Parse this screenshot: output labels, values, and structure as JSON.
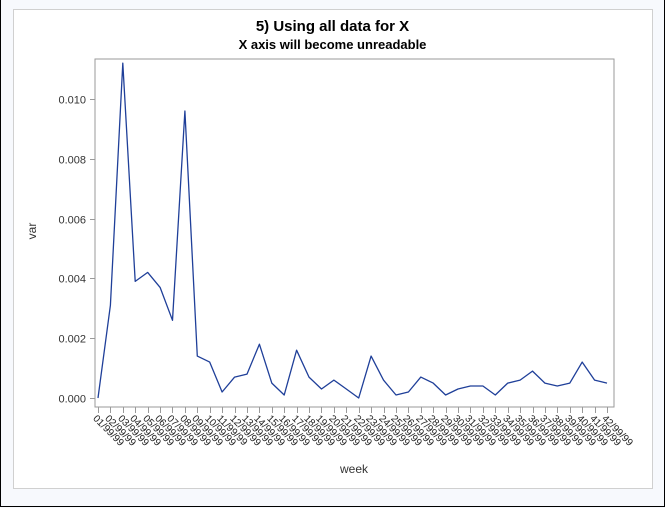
{
  "titles": {
    "main": "5) Using all data for X",
    "sub": "X axis will become unreadable"
  },
  "colors": {
    "line": "#1f3f99",
    "frame": "#9a9a9a",
    "background": "#f7f9fd"
  },
  "chart_data": {
    "type": "line",
    "title": "5) Using all data for X",
    "subtitle": "X axis will become unreadable",
    "xlabel": "week",
    "ylabel": "var",
    "ylim": [
      0,
      0.0113
    ],
    "yticks": [
      "0.000",
      "0.002",
      "0.004",
      "0.006",
      "0.008",
      "0.010"
    ],
    "ytick_values": [
      0,
      0.002,
      0.004,
      0.006,
      0.008,
      0.01
    ],
    "grid": false,
    "legend": null,
    "x_tick_labels_note": "42 rotated, overlapping week labels (unreadable)",
    "x": [
      1,
      2,
      3,
      4,
      5,
      6,
      7,
      8,
      9,
      10,
      11,
      12,
      13,
      14,
      15,
      16,
      17,
      18,
      19,
      20,
      21,
      22,
      23,
      24,
      25,
      26,
      27,
      28,
      29,
      30,
      31,
      32,
      33,
      34,
      35,
      36,
      37,
      38,
      39,
      40,
      41,
      42
    ],
    "series": [
      {
        "name": "var",
        "values": [
          0.0,
          0.0031,
          0.0112,
          0.0039,
          0.0042,
          0.0037,
          0.0026,
          0.0096,
          0.0014,
          0.0012,
          0.0002,
          0.0007,
          0.0008,
          0.0018,
          0.0005,
          0.0001,
          0.0016,
          0.0007,
          0.0003,
          0.0006,
          0.0003,
          0.0,
          0.0014,
          0.0006,
          0.0001,
          0.0002,
          0.0007,
          0.0005,
          0.0001,
          0.0003,
          0.0004,
          0.0004,
          0.0001,
          0.0005,
          0.0006,
          0.0009,
          0.0005,
          0.0004,
          0.0005,
          0.0012,
          0.0006,
          0.0005
        ]
      }
    ]
  }
}
